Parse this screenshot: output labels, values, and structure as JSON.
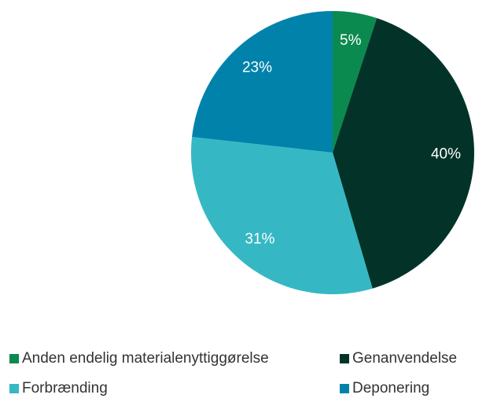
{
  "chart_data": {
    "type": "pie",
    "categories": [
      "Anden endelig materialenyttiggørelse",
      "Genanvendelse",
      "Forbrænding",
      "Deponering"
    ],
    "values": [
      5,
      40,
      31,
      23
    ],
    "value_labels": [
      "5%",
      "40%",
      "31%",
      "23%"
    ],
    "colors": [
      "#0a8a4f",
      "#033328",
      "#35b8c4",
      "#0082ab"
    ],
    "legend": "bottom"
  }
}
